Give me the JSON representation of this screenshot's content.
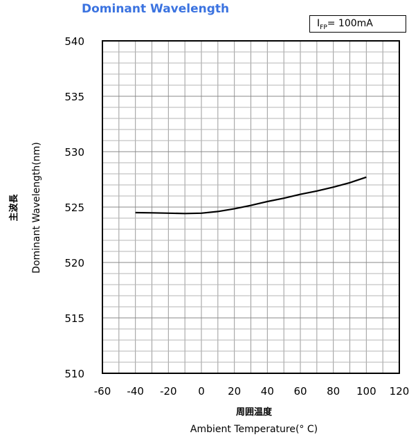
{
  "title": "Dominant Wavelength",
  "condition": {
    "symbol": "I",
    "subscript": "FP",
    "value": "= 100mA"
  },
  "chart_data": {
    "type": "line",
    "title": "Dominant Wavelength",
    "xlabel_jp": "周囲温度",
    "xlabel": "Ambient Temperature(° C)",
    "ylabel_jp": "主波長",
    "ylabel": "Dominant Wavelength(nm)",
    "xlim": [
      -60,
      120
    ],
    "ylim": [
      510,
      540
    ],
    "xticks": [
      -60,
      -40,
      -20,
      0,
      20,
      40,
      60,
      80,
      100,
      120
    ],
    "yticks": [
      510,
      515,
      520,
      525,
      530,
      535,
      540
    ],
    "grid": true,
    "series": [
      {
        "x": [
          -40,
          -30,
          -20,
          -10,
          0,
          10,
          20,
          30,
          40,
          50,
          60,
          70,
          80,
          90,
          100
        ],
        "values": [
          524.5,
          524.48,
          524.45,
          524.42,
          524.45,
          524.6,
          524.85,
          525.15,
          525.5,
          525.8,
          526.15,
          526.45,
          526.8,
          527.2,
          527.7
        ]
      }
    ]
  }
}
